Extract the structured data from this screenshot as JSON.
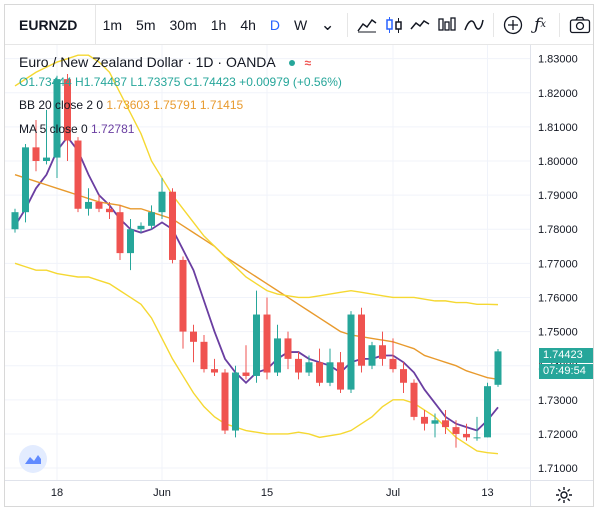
{
  "toolbar": {
    "symbol": "EURNZD",
    "intervals": [
      "1m",
      "5m",
      "30m",
      "1h",
      "4h",
      "D",
      "W"
    ],
    "active_interval": "D",
    "icons": [
      "chevron-down-icon",
      "bar-chart-icon",
      "candles-icon",
      "line-chart-icon",
      "area-chart-icon",
      "indicators-icon",
      "add-icon",
      "function-icon",
      "camera-icon"
    ]
  },
  "legend": {
    "title": "Euro / New Zealand Dollar · 1D · OANDA",
    "ohlc": "O1.73444 H1.74487 L1.73375 C1.74423 +0.00979 (+0.56%)",
    "bb_label": "BB 20 close 2 0",
    "bb_values": "1.73603  1.75791  1.71415",
    "ma_label": "MA 5 close 0",
    "ma_value": "1.72781"
  },
  "price_labels": {
    "last": "1.74423",
    "countdown": "07:49:54"
  },
  "colors": {
    "up": "#26a69a",
    "down": "#ef5350",
    "bb_basis": "#e89a2d",
    "bb_band": "#f5d832",
    "ma": "#6a3ea1"
  },
  "chart_data": {
    "type": "candlestick",
    "x_ticks": [
      "18",
      "Jun",
      "15",
      "Jul",
      "13"
    ],
    "y_ticks": [
      "1.83000",
      "1.82000",
      "1.81000",
      "1.80000",
      "1.79000",
      "1.78000",
      "1.77000",
      "1.76000",
      "1.75000",
      "1.74000",
      "1.73000",
      "1.72000",
      "1.71000"
    ],
    "ylim": [
      1.7065,
      1.834
    ],
    "candles": [
      {
        "o": 1.78,
        "h": 1.786,
        "l": 1.779,
        "c": 1.785
      },
      {
        "o": 1.785,
        "h": 1.805,
        "l": 1.782,
        "c": 1.804
      },
      {
        "o": 1.804,
        "h": 1.812,
        "l": 1.797,
        "c": 1.8
      },
      {
        "o": 1.8,
        "h": 1.815,
        "l": 1.799,
        "c": 1.801
      },
      {
        "o": 1.801,
        "h": 1.825,
        "l": 1.795,
        "c": 1.824
      },
      {
        "o": 1.824,
        "h": 1.8255,
        "l": 1.8,
        "c": 1.806
      },
      {
        "o": 1.806,
        "h": 1.807,
        "l": 1.785,
        "c": 1.786
      },
      {
        "o": 1.786,
        "h": 1.792,
        "l": 1.784,
        "c": 1.788
      },
      {
        "o": 1.788,
        "h": 1.79,
        "l": 1.785,
        "c": 1.786
      },
      {
        "o": 1.786,
        "h": 1.788,
        "l": 1.783,
        "c": 1.785
      },
      {
        "o": 1.785,
        "h": 1.787,
        "l": 1.771,
        "c": 1.773
      },
      {
        "o": 1.773,
        "h": 1.783,
        "l": 1.768,
        "c": 1.78
      },
      {
        "o": 1.78,
        "h": 1.782,
        "l": 1.779,
        "c": 1.781
      },
      {
        "o": 1.781,
        "h": 1.787,
        "l": 1.78,
        "c": 1.785
      },
      {
        "o": 1.785,
        "h": 1.795,
        "l": 1.783,
        "c": 1.791
      },
      {
        "o": 1.791,
        "h": 1.792,
        "l": 1.77,
        "c": 1.771
      },
      {
        "o": 1.771,
        "h": 1.772,
        "l": 1.745,
        "c": 1.75
      },
      {
        "o": 1.75,
        "h": 1.752,
        "l": 1.741,
        "c": 1.747
      },
      {
        "o": 1.747,
        "h": 1.749,
        "l": 1.738,
        "c": 1.739
      },
      {
        "o": 1.739,
        "h": 1.742,
        "l": 1.737,
        "c": 1.738
      },
      {
        "o": 1.738,
        "h": 1.739,
        "l": 1.72,
        "c": 1.721
      },
      {
        "o": 1.721,
        "h": 1.74,
        "l": 1.719,
        "c": 1.738
      },
      {
        "o": 1.738,
        "h": 1.746,
        "l": 1.736,
        "c": 1.737
      },
      {
        "o": 1.737,
        "h": 1.762,
        "l": 1.735,
        "c": 1.755
      },
      {
        "o": 1.755,
        "h": 1.76,
        "l": 1.736,
        "c": 1.738
      },
      {
        "o": 1.738,
        "h": 1.752,
        "l": 1.737,
        "c": 1.748
      },
      {
        "o": 1.748,
        "h": 1.75,
        "l": 1.739,
        "c": 1.742
      },
      {
        "o": 1.742,
        "h": 1.744,
        "l": 1.736,
        "c": 1.738
      },
      {
        "o": 1.738,
        "h": 1.743,
        "l": 1.737,
        "c": 1.741
      },
      {
        "o": 1.741,
        "h": 1.745,
        "l": 1.734,
        "c": 1.735
      },
      {
        "o": 1.735,
        "h": 1.745,
        "l": 1.734,
        "c": 1.741
      },
      {
        "o": 1.741,
        "h": 1.744,
        "l": 1.732,
        "c": 1.733
      },
      {
        "o": 1.733,
        "h": 1.756,
        "l": 1.732,
        "c": 1.755
      },
      {
        "o": 1.755,
        "h": 1.757,
        "l": 1.738,
        "c": 1.74
      },
      {
        "o": 1.74,
        "h": 1.747,
        "l": 1.739,
        "c": 1.746
      },
      {
        "o": 1.746,
        "h": 1.75,
        "l": 1.74,
        "c": 1.742
      },
      {
        "o": 1.742,
        "h": 1.748,
        "l": 1.738,
        "c": 1.739
      },
      {
        "o": 1.739,
        "h": 1.741,
        "l": 1.732,
        "c": 1.735
      },
      {
        "o": 1.735,
        "h": 1.736,
        "l": 1.724,
        "c": 1.725
      },
      {
        "o": 1.725,
        "h": 1.727,
        "l": 1.721,
        "c": 1.723
      },
      {
        "o": 1.723,
        "h": 1.726,
        "l": 1.719,
        "c": 1.724
      },
      {
        "o": 1.724,
        "h": 1.727,
        "l": 1.72,
        "c": 1.722
      },
      {
        "o": 1.722,
        "h": 1.724,
        "l": 1.716,
        "c": 1.72
      },
      {
        "o": 1.72,
        "h": 1.723,
        "l": 1.718,
        "c": 1.719
      },
      {
        "o": 1.719,
        "h": 1.725,
        "l": 1.718,
        "c": 1.719
      },
      {
        "o": 1.719,
        "h": 1.735,
        "l": 1.719,
        "c": 1.734
      },
      {
        "o": 1.7344,
        "h": 1.7449,
        "l": 1.7338,
        "c": 1.7442
      }
    ],
    "series": [
      {
        "name": "MA 5 close 0",
        "color": "#6a3ea1",
        "values": [
          1.781,
          1.786,
          1.792,
          1.796,
          1.803,
          1.807,
          1.803,
          1.796,
          1.79,
          1.787,
          1.783,
          1.78,
          1.779,
          1.78,
          1.782,
          1.78,
          1.774,
          1.768,
          1.759,
          1.75,
          1.742,
          1.738,
          1.735,
          1.738,
          1.739,
          1.742,
          1.744,
          1.744,
          1.742,
          1.741,
          1.74,
          1.738,
          1.741,
          1.742,
          1.742,
          1.743,
          1.743,
          1.741,
          1.738,
          1.733,
          1.729,
          1.725,
          1.723,
          1.722,
          1.721,
          1.724,
          1.7278
        ]
      },
      {
        "name": "BB basis",
        "color": "#e89a2d",
        "values": [
          1.796,
          1.795,
          1.794,
          1.793,
          1.792,
          1.791,
          1.79,
          1.789,
          1.788,
          1.7875,
          1.787,
          1.786,
          1.786,
          1.785,
          1.784,
          1.783,
          1.781,
          1.779,
          1.777,
          1.775,
          1.772,
          1.77,
          1.768,
          1.766,
          1.764,
          1.762,
          1.76,
          1.758,
          1.756,
          1.754,
          1.752,
          1.75,
          1.749,
          1.7485,
          1.748,
          1.7475,
          1.747,
          1.746,
          1.745,
          1.743,
          1.742,
          1.741,
          1.74,
          1.7385,
          1.7375,
          1.7365,
          1.736
        ]
      },
      {
        "name": "BB upper",
        "color": "#f5d832",
        "values": [
          1.822,
          1.824,
          1.826,
          1.8275,
          1.829,
          1.83,
          1.831,
          1.831,
          1.829,
          1.826,
          1.82,
          1.814,
          1.808,
          1.8,
          1.795,
          1.79,
          1.786,
          1.782,
          1.778,
          1.775,
          1.772,
          1.769,
          1.766,
          1.764,
          1.762,
          1.761,
          1.7605,
          1.76,
          1.76,
          1.7605,
          1.761,
          1.7615,
          1.762,
          1.7615,
          1.761,
          1.7605,
          1.76,
          1.76,
          1.76,
          1.7595,
          1.759,
          1.759,
          1.7585,
          1.7585,
          1.758,
          1.758,
          1.7579
        ]
      },
      {
        "name": "BB lower",
        "color": "#f5d832",
        "values": [
          1.77,
          1.769,
          1.768,
          1.768,
          1.767,
          1.7665,
          1.766,
          1.766,
          1.765,
          1.764,
          1.762,
          1.76,
          1.758,
          1.754,
          1.748,
          1.742,
          1.737,
          1.732,
          1.728,
          1.725,
          1.723,
          1.722,
          1.721,
          1.7205,
          1.72,
          1.72,
          1.72,
          1.7205,
          1.72,
          1.719,
          1.7195,
          1.72,
          1.721,
          1.723,
          1.725,
          1.728,
          1.73,
          1.73,
          1.729,
          1.727,
          1.725,
          1.722,
          1.719,
          1.717,
          1.715,
          1.7145,
          1.7142
        ]
      }
    ]
  }
}
